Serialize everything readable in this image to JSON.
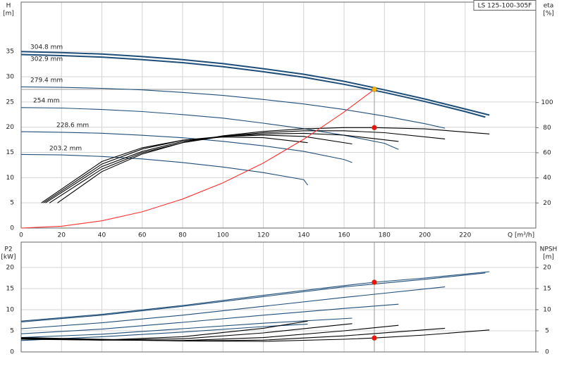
{
  "chart_data": [
    {
      "type": "line",
      "model": "LS 125-100-305F",
      "y_label": "H",
      "y_unit": "[m]",
      "y2_label": "eta",
      "y2_unit": "[%]",
      "x_label": "Q [m³/h]",
      "xlim": [
        0,
        255
      ],
      "xticks": [
        0,
        20,
        40,
        60,
        80,
        100,
        120,
        140,
        160,
        180,
        200,
        220
      ],
      "xtick_labels": true,
      "ylim": [
        0,
        44.8
      ],
      "yticks": [
        0,
        5,
        10,
        15,
        20,
        25,
        30,
        35
      ],
      "y2lim": [
        0,
        180
      ],
      "y2ticks": [
        20,
        40,
        60,
        80,
        100
      ],
      "grid": true,
      "series": [
        {
          "name": "304.8 mm",
          "color": "#1f4e79",
          "x": [
            0,
            20,
            40,
            60,
            80,
            100,
            120,
            140,
            160,
            180,
            200,
            220,
            232
          ],
          "values": [
            35.0,
            34.8,
            34.5,
            34.0,
            33.4,
            32.6,
            31.6,
            30.5,
            29.1,
            27.4,
            25.6,
            23.6,
            22.4
          ]
        },
        {
          "name": "302.9 mm",
          "color": "#1f4e79",
          "x": [
            0,
            20,
            40,
            60,
            80,
            100,
            120,
            140,
            160,
            180,
            200,
            220,
            230
          ],
          "values": [
            34.4,
            34.2,
            33.9,
            33.4,
            32.8,
            32.0,
            31.0,
            29.9,
            28.5,
            26.9,
            25.1,
            23.1,
            22.0
          ]
        },
        {
          "name": "279.4 mm",
          "color": "#1f4e79",
          "x": [
            0,
            20,
            40,
            60,
            80,
            100,
            120,
            140,
            160,
            180,
            200,
            210
          ],
          "values": [
            28.0,
            27.9,
            27.7,
            27.4,
            26.9,
            26.3,
            25.5,
            24.6,
            23.5,
            22.2,
            20.7,
            19.8
          ]
        },
        {
          "name": "254 mm",
          "color": "#1f4e79",
          "x": [
            0,
            20,
            40,
            60,
            80,
            100,
            120,
            140,
            160,
            180,
            187
          ],
          "values": [
            23.9,
            23.8,
            23.5,
            23.1,
            22.5,
            21.8,
            20.8,
            19.7,
            18.4,
            16.8,
            15.6
          ]
        },
        {
          "name": "228.6 mm",
          "color": "#1f4e79",
          "x": [
            0,
            20,
            40,
            60,
            80,
            100,
            120,
            140,
            160,
            164
          ],
          "values": [
            19.1,
            19.0,
            18.8,
            18.4,
            17.9,
            17.2,
            16.3,
            15.2,
            13.6,
            13.0
          ]
        },
        {
          "name": "203.2 mm",
          "color": "#1f4e79",
          "x": [
            0,
            20,
            40,
            60,
            80,
            100,
            120,
            140,
            142
          ],
          "values": [
            14.6,
            14.5,
            14.2,
            13.7,
            13.0,
            12.1,
            11.0,
            9.6,
            8.5
          ]
        },
        {
          "color": "#000000",
          "axis": "y2",
          "x": [
            18,
            40,
            60,
            80,
            100,
            120,
            140,
            160,
            175,
            200,
            232
          ],
          "values": [
            20,
            45,
            59,
            68,
            73.5,
            77,
            79,
            80,
            80,
            79,
            75
          ]
        },
        {
          "color": "#000000",
          "axis": "y2",
          "x": [
            14,
            40,
            60,
            80,
            100,
            120,
            140,
            160,
            180,
            210
          ],
          "values": [
            20,
            47,
            60,
            68,
            73,
            76,
            77.5,
            77.5,
            76,
            71
          ]
        },
        {
          "color": "#000000",
          "axis": "y2",
          "x": [
            12,
            40,
            60,
            80,
            100,
            120,
            140,
            160,
            187
          ],
          "values": [
            20,
            49,
            61,
            69,
            73,
            75,
            75.5,
            74,
            69
          ]
        },
        {
          "color": "#000000",
          "axis": "y2",
          "x": [
            11,
            40,
            60,
            80,
            100,
            120,
            140,
            164
          ],
          "values": [
            20,
            51,
            63,
            70,
            73,
            74,
            73,
            67
          ]
        },
        {
          "color": "#000000",
          "axis": "y2",
          "x": [
            10,
            40,
            60,
            80,
            100,
            120,
            142
          ],
          "values": [
            20,
            53,
            64,
            70,
            72.5,
            72,
            68
          ]
        },
        {
          "color": "#ff3030",
          "x": [
            0,
            20,
            40,
            60,
            80,
            100,
            120,
            140,
            160,
            175
          ],
          "values": [
            0,
            0.36,
            1.44,
            3.23,
            5.75,
            8.98,
            12.9,
            17.6,
            23.0,
            27.5
          ]
        }
      ],
      "points": [
        {
          "x": 175,
          "y": 27.5,
          "color": "#f5b400",
          "guides": true
        },
        {
          "x": 175,
          "y": 80,
          "axis": "y2",
          "color": "#ee1111"
        }
      ]
    },
    {
      "type": "line",
      "y_label": "P2",
      "y_unit": "[kW]",
      "y2_label": "NPSH",
      "y2_unit": "[m]",
      "xlim": [
        0,
        255
      ],
      "xticks": [
        0,
        20,
        40,
        60,
        80,
        100,
        120,
        140,
        160,
        180,
        200,
        220
      ],
      "xtick_labels": false,
      "ylim": [
        0,
        26
      ],
      "yticks": [
        0,
        5,
        10,
        15,
        20
      ],
      "y2lim": [
        0,
        26
      ],
      "y2ticks": [
        0,
        5,
        10,
        15,
        20
      ],
      "grid": true,
      "series": [
        {
          "color": "#1f4e79",
          "x": [
            0,
            40,
            80,
            120,
            160,
            175,
            200,
            232
          ],
          "values": [
            7.3,
            8.9,
            11.0,
            13.4,
            15.7,
            16.5,
            17.5,
            19.0
          ]
        },
        {
          "color": "#1f4e79",
          "x": [
            0,
            40,
            80,
            120,
            160,
            200,
            230
          ],
          "values": [
            7.1,
            8.7,
            10.8,
            13.1,
            15.4,
            17.2,
            18.7
          ]
        },
        {
          "color": "#1f4e79",
          "x": [
            0,
            40,
            80,
            120,
            160,
            210
          ],
          "values": [
            5.5,
            6.9,
            8.7,
            10.8,
            12.9,
            15.4
          ]
        },
        {
          "color": "#1f4e79",
          "x": [
            0,
            40,
            80,
            120,
            160,
            187
          ],
          "values": [
            4.3,
            5.4,
            7.0,
            8.7,
            10.3,
            11.3
          ]
        },
        {
          "color": "#1f4e79",
          "x": [
            0,
            40,
            80,
            120,
            164
          ],
          "values": [
            3.4,
            4.2,
            5.5,
            6.8,
            8.0
          ]
        },
        {
          "color": "#1f4e79",
          "x": [
            0,
            40,
            80,
            120,
            142
          ],
          "values": [
            2.7,
            3.6,
            4.7,
            6.0,
            6.6
          ]
        },
        {
          "color": "#000000",
          "axis": "y2",
          "x": [
            0,
            40,
            80,
            120,
            160,
            175,
            200,
            232
          ],
          "values": [
            3.4,
            3.0,
            2.6,
            2.5,
            3.0,
            3.3,
            4.0,
            5.2
          ]
        },
        {
          "color": "#000000",
          "axis": "y2",
          "x": [
            0,
            40,
            80,
            120,
            160,
            210
          ],
          "values": [
            3.3,
            2.9,
            2.6,
            2.8,
            3.8,
            5.6
          ]
        },
        {
          "color": "#000000",
          "axis": "y2",
          "x": [
            0,
            40,
            80,
            120,
            160,
            187
          ],
          "values": [
            3.2,
            2.8,
            2.7,
            3.4,
            5.0,
            6.3
          ]
        },
        {
          "color": "#000000",
          "axis": "y2",
          "x": [
            0,
            40,
            80,
            120,
            164
          ],
          "values": [
            3.1,
            2.8,
            3.1,
            4.5,
            6.7
          ]
        },
        {
          "color": "#000000",
          "axis": "y2",
          "x": [
            0,
            40,
            80,
            120,
            142
          ],
          "values": [
            3.0,
            2.8,
            3.6,
            5.6,
            7.3
          ]
        }
      ],
      "points": [
        {
          "x": 175,
          "y": 16.5,
          "color": "#ee1111",
          "guides": true
        },
        {
          "x": 175,
          "y": 3.3,
          "axis": "y2",
          "color": "#ee1111"
        }
      ]
    }
  ]
}
